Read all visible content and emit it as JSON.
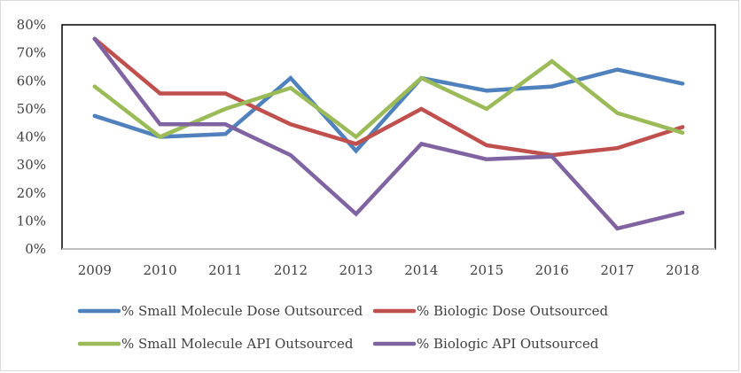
{
  "chart_data": {
    "type": "line",
    "title": "",
    "xlabel": "",
    "ylabel": "",
    "categories": [
      "2009",
      "2010",
      "2011",
      "2012",
      "2013",
      "2014",
      "2015",
      "2016",
      "2017",
      "2018"
    ],
    "ylim": [
      0,
      0.8
    ],
    "yticks": [
      0,
      0.1,
      0.2,
      0.3,
      0.4,
      0.5,
      0.6,
      0.7,
      0.8
    ],
    "ytick_labels": [
      "0%",
      "10%",
      "20%",
      "30%",
      "40%",
      "50%",
      "60%",
      "70%",
      "80%"
    ],
    "grid": false,
    "legend_position": "bottom",
    "series": [
      {
        "name": "% Small Molecule Dose Outsourced",
        "color": "#4F81BD",
        "values": [
          0.475,
          0.4,
          0.41,
          0.61,
          0.35,
          0.61,
          0.565,
          0.58,
          0.64,
          0.59
        ]
      },
      {
        "name": "% Biologic Dose Outsourced",
        "color": "#C0504D",
        "values": [
          0.75,
          0.555,
          0.555,
          0.445,
          0.375,
          0.5,
          0.37,
          0.335,
          0.36,
          0.435
        ]
      },
      {
        "name": "% Small Molecule API Outsourced",
        "color": "#9BBB59",
        "values": [
          0.58,
          0.4,
          0.5,
          0.575,
          0.4,
          0.61,
          0.5,
          0.67,
          0.485,
          0.415
        ]
      },
      {
        "name": "% Biologic API Outsourced",
        "color": "#8064A2",
        "values": [
          0.75,
          0.445,
          0.445,
          0.335,
          0.125,
          0.375,
          0.32,
          0.33,
          0.073,
          0.13
        ]
      }
    ]
  }
}
